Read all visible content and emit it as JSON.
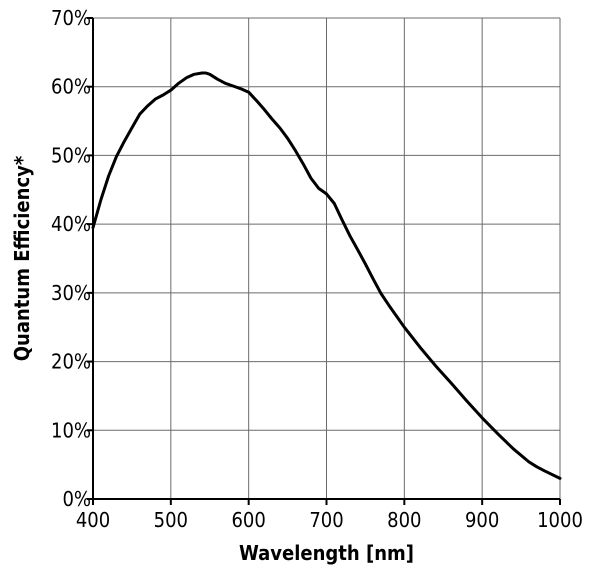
{
  "chart_data": {
    "type": "line",
    "xlabel": "Wavelength [nm]",
    "ylabel": "Quantum Efficiency*",
    "xlim": [
      400,
      1000
    ],
    "ylim": [
      0,
      70
    ],
    "x_ticks": [
      400,
      500,
      600,
      700,
      800,
      900,
      1000
    ],
    "y_ticks": [
      0,
      10,
      20,
      30,
      40,
      50,
      60,
      70
    ],
    "x_tick_labels": [
      "400",
      "500",
      "600",
      "700",
      "800",
      "900",
      "1000"
    ],
    "y_tick_labels": [
      "0%",
      "10%",
      "20%",
      "30%",
      "40%",
      "50%",
      "60%",
      "70%"
    ],
    "grid": true,
    "series": [
      {
        "color": "#000000",
        "x": [
          400,
          410,
          420,
          430,
          440,
          450,
          460,
          470,
          480,
          490,
          500,
          510,
          520,
          530,
          540,
          545,
          550,
          560,
          570,
          580,
          590,
          600,
          610,
          620,
          630,
          640,
          650,
          660,
          670,
          680,
          690,
          700,
          710,
          720,
          730,
          740,
          750,
          760,
          770,
          780,
          790,
          800,
          820,
          840,
          860,
          880,
          900,
          920,
          940,
          960,
          970,
          980,
          1000
        ],
        "y": [
          39.5,
          43.5,
          47,
          49.8,
          52,
          54,
          56,
          57.2,
          58.2,
          58.8,
          59.5,
          60.5,
          61.3,
          61.8,
          62.0,
          62.0,
          61.8,
          61.1,
          60.5,
          60.1,
          59.7,
          59.2,
          58,
          56.7,
          55.3,
          54,
          52.5,
          50.7,
          48.8,
          46.7,
          45.2,
          44.4,
          43,
          40.6,
          38.3,
          36.3,
          34.2,
          32,
          29.9,
          28.2,
          26.6,
          25,
          22.1,
          19.4,
          16.9,
          14.3,
          11.8,
          9.5,
          7.3,
          5.4,
          4.7,
          4.1,
          3.0
        ]
      }
    ]
  }
}
